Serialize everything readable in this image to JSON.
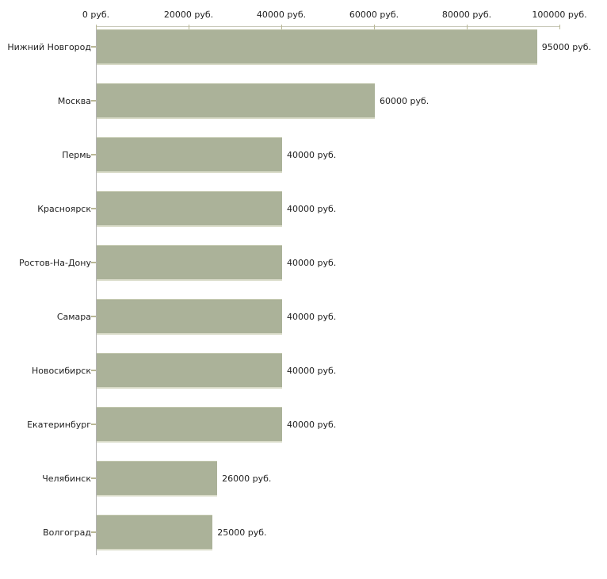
{
  "chart_data": {
    "type": "bar",
    "orientation": "horizontal",
    "title": "",
    "xlabel": "",
    "ylabel": "",
    "categories": [
      "Нижний Новгород",
      "Москва",
      "Пермь",
      "Красноярск",
      "Ростов-На-Дону",
      "Самара",
      "Новосибирск",
      "Екатеринбург",
      "Челябинск",
      "Волгоград"
    ],
    "values": [
      95000,
      60000,
      40000,
      40000,
      40000,
      40000,
      40000,
      40000,
      26000,
      25000
    ],
    "value_labels": [
      "95000 руб.",
      "60000 руб.",
      "40000 руб.",
      "40000 руб.",
      "40000 руб.",
      "40000 руб.",
      "40000 руб.",
      "40000 руб.",
      "26000 руб.",
      "25000 руб."
    ],
    "x_ticks": [
      0,
      20000,
      40000,
      60000,
      80000,
      100000
    ],
    "x_tick_labels": [
      "0 руб.",
      "20000 руб.",
      "40000 руб.",
      "60000 руб.",
      "80000 руб.",
      "100000 руб."
    ],
    "xlim": [
      0,
      100000
    ],
    "grid": false,
    "legend": "none",
    "axis_position": "top",
    "colors": {
      "bar": "#abb299",
      "bar_edge_top": "#c3c8af",
      "bar_edge_bottom": "#d9dbc8",
      "axis_line": "#c9c9ba",
      "tick": "#b9b795",
      "y_axis_line": "#b3b3b3",
      "text": "#1f1f1f"
    }
  }
}
